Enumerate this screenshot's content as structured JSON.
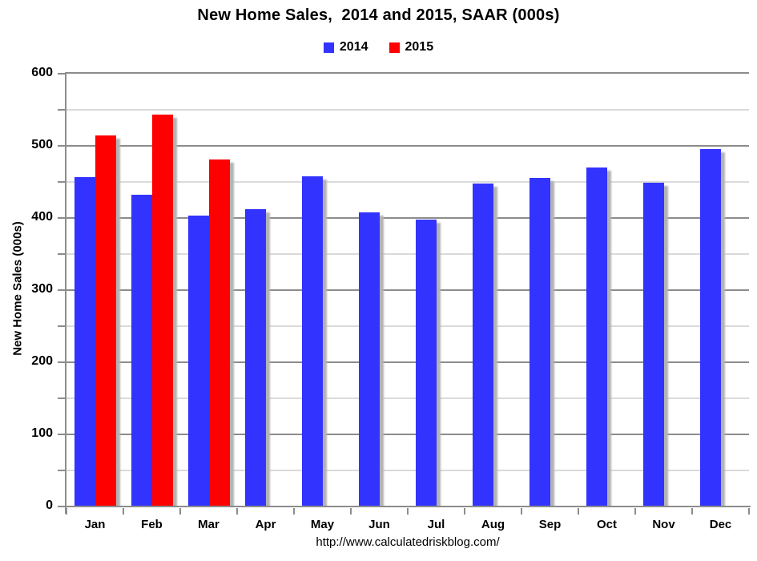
{
  "chart_data": {
    "type": "bar",
    "title": "New Home Sales,  2014 and 2015, SAAR (000s)",
    "ylabel": "New Home Sales (000s)",
    "xlabel": "",
    "footer_url": "http://www.calculatedriskblog.com/",
    "categories": [
      "Jan",
      "Feb",
      "Mar",
      "Apr",
      "May",
      "Jun",
      "Jul",
      "Aug",
      "Sep",
      "Oct",
      "Nov",
      "Dec"
    ],
    "series": [
      {
        "name": "2014",
        "color": "#3333ff",
        "values": [
          457,
          432,
          403,
          412,
          458,
          408,
          398,
          448,
          456,
          470,
          449,
          496
        ]
      },
      {
        "name": "2015",
        "color": "#ff0000",
        "values": [
          514,
          543,
          481,
          null,
          null,
          null,
          null,
          null,
          null,
          null,
          null,
          null
        ]
      }
    ],
    "ylim": [
      0,
      600
    ],
    "ytick_step": 100,
    "minor_gridline_step": 50,
    "ytick_labels": [
      "0",
      "100",
      "200",
      "300",
      "400",
      "500",
      "600"
    ],
    "grid": true,
    "legend_position": "top-center",
    "colors": {
      "major_gridline": "#8c8c8c",
      "minor_gridline": "#dadada",
      "axis": "#8c8c8c",
      "bar_shadow": "#b3b3b3",
      "background": "#ffffff",
      "text": "#000000"
    }
  }
}
